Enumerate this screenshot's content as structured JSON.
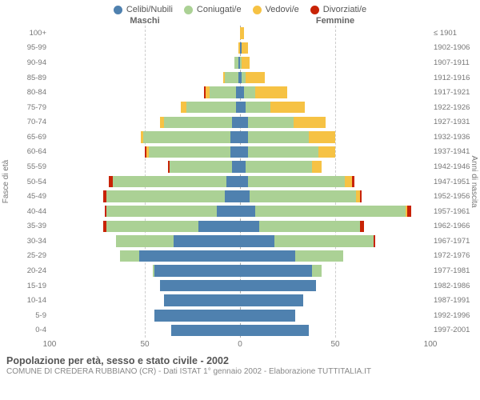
{
  "chart": {
    "type": "population-pyramid",
    "title": "Popolazione per età, sesso e stato civile - 2002",
    "subtitle": "COMUNE DI CREDERA RUBBIANO (CR) - Dati ISTAT 1° gennaio 2002 - Elaborazione TUTTITALIA.IT",
    "header_left": "Maschi",
    "header_right": "Femmine",
    "y_title_left": "Fasce di età",
    "y_title_right": "Anni di nascita",
    "x_max": 100,
    "x_ticks": [
      100,
      50,
      0,
      50,
      100
    ],
    "background_color": "#ffffff",
    "grid_color": "#cccccc",
    "center_line_color": "#aaaaaa",
    "text_color": "#777777",
    "title_color": "#555555",
    "legend": [
      {
        "label": "Celibi/Nubili",
        "color": "#4f81af"
      },
      {
        "label": "Coniugati/e",
        "color": "#abd195"
      },
      {
        "label": "Vedovi/e",
        "color": "#f6c244"
      },
      {
        "label": "Divorziati/e",
        "color": "#c82306"
      }
    ],
    "age_labels": [
      "100+",
      "95-99",
      "90-94",
      "85-89",
      "80-84",
      "75-79",
      "70-74",
      "65-69",
      "60-64",
      "55-59",
      "50-54",
      "45-49",
      "40-44",
      "35-39",
      "30-34",
      "25-29",
      "20-24",
      "15-19",
      "10-14",
      "5-9",
      "0-4"
    ],
    "birth_labels": [
      "≤ 1901",
      "1902-1906",
      "1907-1911",
      "1912-1916",
      "1917-1921",
      "1922-1926",
      "1927-1931",
      "1932-1936",
      "1937-1941",
      "1942-1946",
      "1947-1951",
      "1952-1956",
      "1957-1961",
      "1962-1966",
      "1967-1971",
      "1972-1976",
      "1977-1981",
      "1982-1986",
      "1987-1991",
      "1992-1996",
      "1997-2001"
    ],
    "rows": [
      {
        "m": {
          "c": 0,
          "co": 0,
          "v": 0,
          "d": 0
        },
        "f": {
          "c": 0,
          "co": 0,
          "v": 2,
          "d": 0
        }
      },
      {
        "m": {
          "c": 0,
          "co": 0,
          "v": 1,
          "d": 0
        },
        "f": {
          "c": 1,
          "co": 0,
          "v": 3,
          "d": 0
        }
      },
      {
        "m": {
          "c": 1,
          "co": 2,
          "v": 0,
          "d": 0
        },
        "f": {
          "c": 0,
          "co": 1,
          "v": 4,
          "d": 0
        }
      },
      {
        "m": {
          "c": 1,
          "co": 7,
          "v": 1,
          "d": 0
        },
        "f": {
          "c": 1,
          "co": 2,
          "v": 10,
          "d": 0
        }
      },
      {
        "m": {
          "c": 2,
          "co": 14,
          "v": 2,
          "d": 1
        },
        "f": {
          "c": 2,
          "co": 6,
          "v": 17,
          "d": 0
        }
      },
      {
        "m": {
          "c": 2,
          "co": 26,
          "v": 3,
          "d": 0
        },
        "f": {
          "c": 3,
          "co": 13,
          "v": 18,
          "d": 0
        }
      },
      {
        "m": {
          "c": 4,
          "co": 36,
          "v": 2,
          "d": 0
        },
        "f": {
          "c": 4,
          "co": 24,
          "v": 17,
          "d": 0
        }
      },
      {
        "m": {
          "c": 5,
          "co": 46,
          "v": 1,
          "d": 0
        },
        "f": {
          "c": 4,
          "co": 32,
          "v": 14,
          "d": 0
        }
      },
      {
        "m": {
          "c": 5,
          "co": 43,
          "v": 1,
          "d": 1
        },
        "f": {
          "c": 4,
          "co": 37,
          "v": 9,
          "d": 0
        }
      },
      {
        "m": {
          "c": 4,
          "co": 33,
          "v": 0,
          "d": 1
        },
        "f": {
          "c": 3,
          "co": 35,
          "v": 5,
          "d": 0
        }
      },
      {
        "m": {
          "c": 7,
          "co": 60,
          "v": 0,
          "d": 2
        },
        "f": {
          "c": 4,
          "co": 51,
          "v": 4,
          "d": 1
        }
      },
      {
        "m": {
          "c": 8,
          "co": 62,
          "v": 0,
          "d": 2
        },
        "f": {
          "c": 5,
          "co": 56,
          "v": 2,
          "d": 1
        }
      },
      {
        "m": {
          "c": 12,
          "co": 58,
          "v": 0,
          "d": 1
        },
        "f": {
          "c": 8,
          "co": 79,
          "v": 1,
          "d": 2
        }
      },
      {
        "m": {
          "c": 22,
          "co": 48,
          "v": 0,
          "d": 2
        },
        "f": {
          "c": 10,
          "co": 53,
          "v": 0,
          "d": 2
        }
      },
      {
        "m": {
          "c": 35,
          "co": 30,
          "v": 0,
          "d": 0
        },
        "f": {
          "c": 18,
          "co": 52,
          "v": 0,
          "d": 1
        }
      },
      {
        "m": {
          "c": 53,
          "co": 10,
          "v": 0,
          "d": 0
        },
        "f": {
          "c": 29,
          "co": 25,
          "v": 0,
          "d": 0
        }
      },
      {
        "m": {
          "c": 45,
          "co": 1,
          "v": 0,
          "d": 0
        },
        "f": {
          "c": 38,
          "co": 5,
          "v": 0,
          "d": 0
        }
      },
      {
        "m": {
          "c": 42,
          "co": 0,
          "v": 0,
          "d": 0
        },
        "f": {
          "c": 40,
          "co": 0,
          "v": 0,
          "d": 0
        }
      },
      {
        "m": {
          "c": 40,
          "co": 0,
          "v": 0,
          "d": 0
        },
        "f": {
          "c": 33,
          "co": 0,
          "v": 0,
          "d": 0
        }
      },
      {
        "m": {
          "c": 45,
          "co": 0,
          "v": 0,
          "d": 0
        },
        "f": {
          "c": 29,
          "co": 0,
          "v": 0,
          "d": 0
        }
      },
      {
        "m": {
          "c": 36,
          "co": 0,
          "v": 0,
          "d": 0
        },
        "f": {
          "c": 36,
          "co": 0,
          "v": 0,
          "d": 0
        }
      }
    ]
  }
}
